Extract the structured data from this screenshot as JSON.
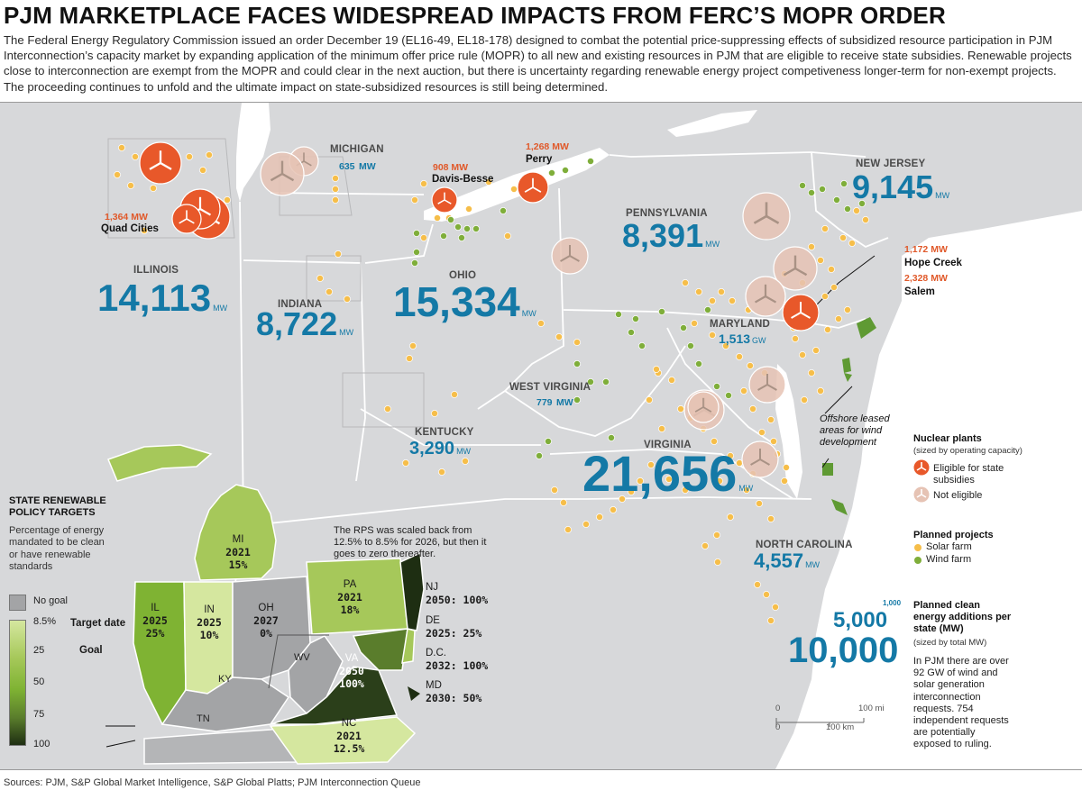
{
  "title": "PJM MARKETPLACE FACES WIDESPREAD IMPACTS FROM FERC’S MOPR ORDER",
  "intro": "The Federal Energy Regulatory Commission issued an order December 19 (EL16-49, EL18-178) designed to combat the potential price-suppressing effects of subsidized resource participation in PJM Interconnection’s capacity market by expanding application of the minimum offer price rule (MOPR) to all new and existing resources in PJM that are eligible to receive state subsidies. Renewable projects close to interconnection are exempt from the MOPR and could clear in the next auction, but there is uncertainty regarding renewable energy project competiveness longer-term for non-exempt projects. The proceeding continues to unfold and the ultimate impact on state-subsidized resources is still being determined.",
  "unit_mw": "MW",
  "unit_gw": "GW",
  "states": [
    {
      "name": "ILLINOIS",
      "value": "14,113",
      "unit": "MW"
    },
    {
      "name": "INDIANA",
      "value": "8,722",
      "unit": "MW"
    },
    {
      "name": "OHIO",
      "value": "15,334",
      "unit": "MW"
    },
    {
      "name": "MICHIGAN",
      "value": "635",
      "unit": "MW"
    },
    {
      "name": "PENNSYLVANIA",
      "value": "8,391",
      "unit": "MW"
    },
    {
      "name": "NEW JERSEY",
      "value": "9,145",
      "unit": "MW"
    },
    {
      "name": "MARYLAND",
      "value": "1,513",
      "unit": "GW"
    },
    {
      "name": "WEST VIRGINIA",
      "value": "779",
      "unit": "MW"
    },
    {
      "name": "KENTUCKY",
      "value": "3,290",
      "unit": "MW"
    },
    {
      "name": "VIRGINIA",
      "value": "21,656",
      "unit": "MW"
    },
    {
      "name": "NORTH CAROLINA",
      "value": "4,557",
      "unit": "MW"
    }
  ],
  "plants": [
    {
      "name": "Quad Cities",
      "mw": "1,364 MW"
    },
    {
      "name": "Davis-Besse",
      "mw": "908 MW"
    },
    {
      "name": "Perry",
      "mw": "1,268 MW"
    },
    {
      "name": "Hope Creek",
      "mw": "1,172 MW"
    },
    {
      "name": "Salem",
      "mw": "2,328 MW"
    }
  ],
  "offshore_label": "Offshore leased areas for wind development",
  "legend": {
    "nuclear_title": "Nuclear plants",
    "nuclear_sub": "(sized by operating capacity)",
    "eligible": "Eligible for state subsidies",
    "not_eligible": "Not eligible",
    "planned_title": "Planned projects",
    "solar": "Solar farm",
    "wind": "Wind farm",
    "additions_title": "Planned clean energy additions per state (MW)",
    "additions_sub": "(sized by total MW)",
    "size_small": "1,000",
    "size_mid": "5,000",
    "size_large": "10,000",
    "note": "In PJM there are over 92 GW of wind and solar generation interconnection requests. 754 independent requests are potentially exposed to ruling.",
    "colors": {
      "eligible": "#e8582a",
      "not_eligible": "#e6c3b4",
      "solar": "#f6be4a",
      "wind": "#7fae3a",
      "value": "#1479a6"
    }
  },
  "scale": {
    "zero": "0",
    "mi": "100 mi",
    "km": "100 km"
  },
  "inset": {
    "title": "STATE RENEWABLE POLICY TARGETS",
    "desc": "Percentage of energy mandated to be clean or have renewable standards",
    "no_goal": "No goal",
    "ticks": [
      "8.5%",
      "25",
      "50",
      "75",
      "100"
    ],
    "target_date_label": "Target date",
    "goal_label": "Goal",
    "note": "The RPS was scaled back from 12.5% to 8.5% for 2026, but then it goes to zero thereafter.",
    "states": [
      {
        "abbr": "MI",
        "year": "2021",
        "goal": "15%"
      },
      {
        "abbr": "IL",
        "year": "2025",
        "goal": "25%"
      },
      {
        "abbr": "IN",
        "year": "2025",
        "goal": "10%"
      },
      {
        "abbr": "OH",
        "year": "2027",
        "goal": "0%"
      },
      {
        "abbr": "PA",
        "year": "2021",
        "goal": "18%"
      },
      {
        "abbr": "VA",
        "year": "2050",
        "goal": "100%"
      },
      {
        "abbr": "NC",
        "year": "2021",
        "goal": "12.5%"
      },
      {
        "abbr": "KY",
        "year": "",
        "goal": ""
      },
      {
        "abbr": "WV",
        "year": "",
        "goal": ""
      },
      {
        "abbr": "TN",
        "year": "",
        "goal": ""
      }
    ],
    "side": [
      {
        "abbr": "NJ",
        "target": "2050: 100%"
      },
      {
        "abbr": "DE",
        "target": "2025: 25%"
      },
      {
        "abbr": "D.C.",
        "target": "2032: 100%"
      },
      {
        "abbr": "MD",
        "target": "2030: 50%"
      }
    ]
  },
  "sources": "Sources: PJM, S&P Global Market Intelligence, S&P Global Platts; PJM Interconnection Queue"
}
